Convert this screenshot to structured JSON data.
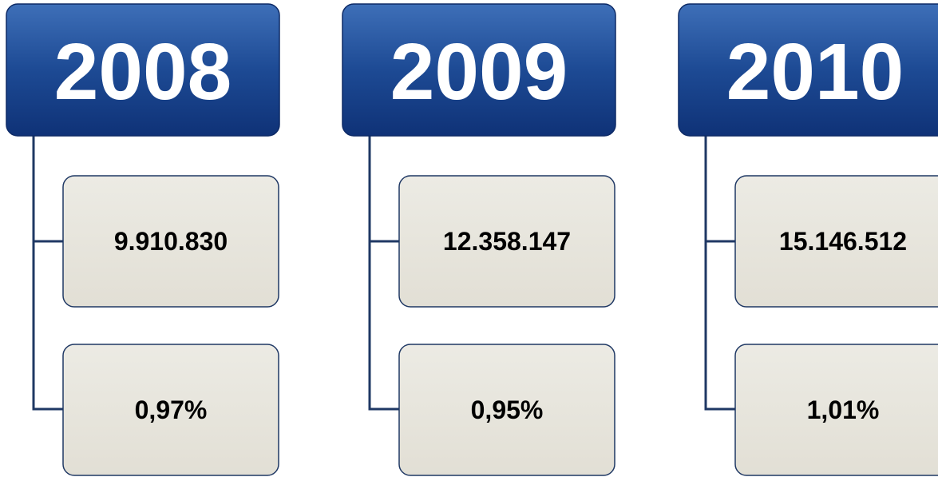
{
  "columns": [
    {
      "year": "2008",
      "value": "9.910.830",
      "share": "0,97%"
    },
    {
      "year": "2009",
      "value": "12.358.147",
      "share": "0,95%"
    },
    {
      "year": "2010",
      "value": "15.146.512",
      "share": "1,01%"
    }
  ]
}
